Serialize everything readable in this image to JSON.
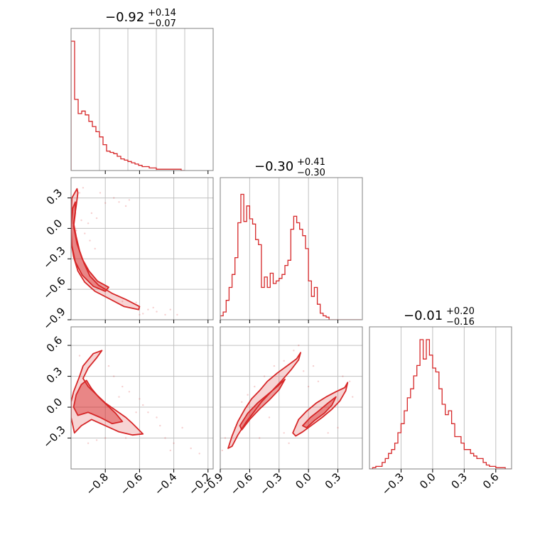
{
  "figure_type": "corner-plot",
  "accent_color": "#d62728",
  "chart_data": [
    {
      "type": "histogram",
      "panel": "diag-0",
      "title": {
        "median": "−0.92",
        "plus": "+0.14",
        "minus": "−0.07"
      },
      "xlim": [
        -1.0,
        0.0
      ],
      "bins": {
        "start": -1.0,
        "width": 0.025,
        "values": [
          1.0,
          0.55,
          0.44,
          0.46,
          0.43,
          0.38,
          0.34,
          0.3,
          0.26,
          0.2,
          0.15,
          0.14,
          0.13,
          0.11,
          0.09,
          0.08,
          0.07,
          0.06,
          0.05,
          0.04,
          0.03,
          0.03,
          0.02,
          0.02,
          0.01,
          0.01,
          0.01,
          0.01,
          0.01,
          0.01,
          0.01,
          0.0
        ]
      }
    },
    {
      "type": "histogram",
      "panel": "diag-1",
      "title": {
        "median": "−0.30",
        "plus": "+0.41",
        "minus": "−0.30"
      },
      "xlim": [
        -0.9,
        0.55
      ],
      "xticks": [
        "−0.9",
        "−0.6",
        "−0.3",
        "0.0",
        "0.3"
      ],
      "bins": {
        "start": -0.9,
        "width": 0.03,
        "values": [
          0.03,
          0.06,
          0.15,
          0.25,
          0.35,
          0.48,
          0.75,
          0.97,
          0.76,
          0.88,
          0.78,
          0.74,
          0.62,
          0.58,
          0.25,
          0.33,
          0.25,
          0.36,
          0.28,
          0.3,
          0.32,
          0.35,
          0.42,
          0.46,
          0.7,
          0.8,
          0.75,
          0.7,
          0.65,
          0.55,
          0.3,
          0.18,
          0.25,
          0.12,
          0.05,
          0.03,
          0.02,
          0.0,
          0.0,
          0.0,
          0.0,
          0.0,
          0.0,
          0.0,
          0.0,
          0.0,
          0.0,
          0.0
        ]
      }
    },
    {
      "type": "histogram",
      "panel": "diag-2",
      "title": {
        "median": "−0.01",
        "plus": "+0.20",
        "minus": "−0.16"
      },
      "xlim": [
        -0.6,
        0.75
      ],
      "xticks": [
        "−0.3",
        "0.0",
        "0.3",
        "0.6"
      ],
      "bins": {
        "start": -0.6,
        "width": 0.03,
        "values": [
          0.0,
          0.01,
          0.02,
          0.02,
          0.05,
          0.08,
          0.12,
          0.15,
          0.2,
          0.28,
          0.35,
          0.45,
          0.55,
          0.62,
          0.72,
          0.8,
          1.0,
          0.85,
          1.0,
          0.88,
          0.78,
          0.75,
          0.62,
          0.5,
          0.42,
          0.45,
          0.35,
          0.25,
          0.25,
          0.2,
          0.15,
          0.15,
          0.12,
          0.1,
          0.08,
          0.08,
          0.05,
          0.03,
          0.02,
          0.02,
          0.01,
          0.01,
          0.01,
          0.0,
          0.0
        ]
      }
    },
    {
      "type": "scatter-contour",
      "panel": "p10",
      "xlim": [
        -1.0,
        -0.17
      ],
      "ylim": [
        -0.9,
        0.5
      ],
      "xticks": [
        "−0.8",
        "−0.6",
        "−0.4",
        "−0.2"
      ],
      "yticks": [
        "0.3",
        "0.0",
        "−0.3",
        "−0.6",
        "−0.9"
      ],
      "contours": [
        {
          "level": "outer",
          "points": [
            [
              -0.995,
              0.3
            ],
            [
              -0.965,
              0.39
            ],
            [
              -0.96,
              0.35
            ],
            [
              -0.97,
              0.22
            ],
            [
              -0.985,
              0.05
            ],
            [
              -0.97,
              -0.08
            ],
            [
              -0.95,
              -0.22
            ],
            [
              -0.925,
              -0.34
            ],
            [
              -0.89,
              -0.47
            ],
            [
              -0.84,
              -0.56
            ],
            [
              -0.76,
              -0.64
            ],
            [
              -0.68,
              -0.7
            ],
            [
              -0.6,
              -0.77
            ],
            [
              -0.605,
              -0.8
            ],
            [
              -0.69,
              -0.77
            ],
            [
              -0.78,
              -0.69
            ],
            [
              -0.86,
              -0.62
            ],
            [
              -0.92,
              -0.53
            ],
            [
              -0.96,
              -0.42
            ],
            [
              -0.985,
              -0.28
            ],
            [
              -1.0,
              -0.13
            ],
            [
              -1.0,
              0.1
            ]
          ]
        },
        {
          "level": "inner",
          "points": [
            [
              -0.99,
              0.2
            ],
            [
              -0.975,
              0.26
            ],
            [
              -0.975,
              0.15
            ],
            [
              -0.985,
              0.02
            ],
            [
              -0.965,
              -0.15
            ],
            [
              -0.935,
              -0.3
            ],
            [
              -0.895,
              -0.42
            ],
            [
              -0.845,
              -0.52
            ],
            [
              -0.78,
              -0.58
            ],
            [
              -0.8,
              -0.62
            ],
            [
              -0.87,
              -0.57
            ],
            [
              -0.935,
              -0.46
            ],
            [
              -0.975,
              -0.33
            ],
            [
              -0.995,
              -0.17
            ],
            [
              -1.0,
              0.0
            ]
          ]
        }
      ],
      "scatter": [
        [
          -0.75,
          0.3
        ],
        [
          -0.72,
          0.26
        ],
        [
          -0.68,
          0.22
        ],
        [
          -0.83,
          0.35
        ],
        [
          -0.88,
          0.15
        ],
        [
          -0.9,
          0.05
        ],
        [
          -0.92,
          -0.05
        ],
        [
          -0.85,
          0.1
        ],
        [
          -0.8,
          0.25
        ],
        [
          -0.95,
          0.35
        ],
        [
          -0.93,
          0.4
        ],
        [
          -0.89,
          -0.12
        ],
        [
          -0.5,
          -0.82
        ],
        [
          -0.45,
          -0.85
        ],
        [
          -0.42,
          -0.8
        ],
        [
          -0.38,
          -0.85
        ],
        [
          -0.55,
          -0.8
        ],
        [
          -0.52,
          -0.78
        ],
        [
          -0.62,
          -0.73
        ],
        [
          -0.58,
          -0.84
        ],
        [
          -0.7,
          -0.72
        ],
        [
          -0.97,
          -0.02
        ],
        [
          -0.94,
          0.08
        ],
        [
          -0.86,
          -0.2
        ],
        [
          -0.6,
          -0.85
        ],
        [
          -0.66,
          0.28
        ]
      ]
    },
    {
      "type": "scatter-contour",
      "panel": "p20",
      "xlim": [
        -1.0,
        -0.17
      ],
      "ylim": [
        -0.6,
        0.78
      ],
      "xticks": [
        "−0.8",
        "−0.6",
        "−0.4",
        "−0.2"
      ],
      "yticks": [
        "0.6",
        "0.3",
        "0.0",
        "−0.3"
      ],
      "contours": [
        {
          "level": "outer",
          "points": [
            [
              -0.985,
              0.15
            ],
            [
              -0.95,
              0.3
            ],
            [
              -0.93,
              0.4
            ],
            [
              -0.87,
              0.52
            ],
            [
              -0.82,
              0.55
            ],
            [
              -0.85,
              0.48
            ],
            [
              -0.9,
              0.38
            ],
            [
              -0.93,
              0.28
            ],
            [
              -0.9,
              0.2
            ],
            [
              -0.85,
              0.12
            ],
            [
              -0.8,
              0.04
            ],
            [
              -0.74,
              -0.03
            ],
            [
              -0.68,
              -0.1
            ],
            [
              -0.64,
              -0.16
            ],
            [
              -0.58,
              -0.26
            ],
            [
              -0.64,
              -0.27
            ],
            [
              -0.72,
              -0.24
            ],
            [
              -0.8,
              -0.18
            ],
            [
              -0.88,
              -0.12
            ],
            [
              -0.94,
              -0.18
            ],
            [
              -0.98,
              -0.25
            ],
            [
              -1.0,
              -0.1
            ],
            [
              -1.0,
              0.05
            ]
          ]
        },
        {
          "level": "inner",
          "points": [
            [
              -0.97,
              0.12
            ],
            [
              -0.94,
              0.22
            ],
            [
              -0.91,
              0.26
            ],
            [
              -0.88,
              0.18
            ],
            [
              -0.84,
              0.1
            ],
            [
              -0.79,
              0.02
            ],
            [
              -0.74,
              -0.06
            ],
            [
              -0.7,
              -0.14
            ],
            [
              -0.76,
              -0.16
            ],
            [
              -0.83,
              -0.1
            ],
            [
              -0.9,
              -0.05
            ],
            [
              -0.96,
              -0.08
            ],
            [
              -0.985,
              0.0
            ]
          ]
        }
      ],
      "scatter": [
        [
          -0.7,
          0.2
        ],
        [
          -0.66,
          0.15
        ],
        [
          -0.6,
          0.08
        ],
        [
          -0.55,
          -0.05
        ],
        [
          -0.5,
          -0.1
        ],
        [
          -0.48,
          -0.18
        ],
        [
          -0.45,
          -0.3
        ],
        [
          -0.4,
          -0.35
        ],
        [
          -0.85,
          -0.32
        ],
        [
          -0.9,
          -0.35
        ],
        [
          -0.8,
          -0.3
        ],
        [
          -0.75,
          0.3
        ],
        [
          -0.78,
          0.4
        ],
        [
          -0.25,
          -0.45
        ],
        [
          -0.3,
          -0.4
        ],
        [
          -0.62,
          -0.05
        ],
        [
          -0.58,
          0.02
        ],
        [
          -0.68,
          -0.3
        ],
        [
          -0.95,
          0.5
        ],
        [
          -0.72,
          0.1
        ],
        [
          -0.35,
          -0.2
        ],
        [
          -0.42,
          -0.42
        ]
      ]
    },
    {
      "type": "scatter-contour",
      "panel": "p21",
      "xlim": [
        -0.9,
        0.55
      ],
      "ylim": [
        -0.6,
        0.78
      ],
      "xticks": [
        "−0.9",
        "−0.6",
        "−0.3",
        "0.0",
        "0.3"
      ],
      "contours": [
        {
          "level": "outer",
          "points": [
            [
              -0.82,
              -0.4
            ],
            [
              -0.78,
              -0.28
            ],
            [
              -0.72,
              -0.14
            ],
            [
              -0.65,
              -0.02
            ],
            [
              -0.58,
              0.08
            ],
            [
              -0.5,
              0.16
            ],
            [
              -0.42,
              0.25
            ],
            [
              -0.32,
              0.33
            ],
            [
              -0.22,
              0.4
            ],
            [
              -0.12,
              0.47
            ],
            [
              -0.08,
              0.53
            ],
            [
              -0.1,
              0.46
            ],
            [
              -0.18,
              0.36
            ],
            [
              -0.28,
              0.25
            ],
            [
              -0.38,
              0.15
            ],
            [
              -0.48,
              0.05
            ],
            [
              -0.56,
              -0.05
            ],
            [
              -0.64,
              -0.15
            ],
            [
              -0.72,
              -0.27
            ],
            [
              -0.78,
              -0.38
            ]
          ]
        },
        {
          "level": "inner",
          "points": [
            [
              -0.7,
              -0.18
            ],
            [
              -0.62,
              -0.06
            ],
            [
              -0.52,
              0.04
            ],
            [
              -0.42,
              0.12
            ],
            [
              -0.32,
              0.2
            ],
            [
              -0.24,
              0.27
            ],
            [
              -0.3,
              0.17
            ],
            [
              -0.4,
              0.07
            ],
            [
              -0.5,
              -0.02
            ],
            [
              -0.6,
              -0.12
            ],
            [
              -0.68,
              -0.22
            ]
          ]
        },
        {
          "level": "outer",
          "points": [
            [
              -0.16,
              -0.25
            ],
            [
              -0.1,
              -0.12
            ],
            [
              -0.02,
              -0.04
            ],
            [
              0.08,
              0.04
            ],
            [
              0.18,
              0.1
            ],
            [
              0.28,
              0.15
            ],
            [
              0.37,
              0.19
            ],
            [
              0.4,
              0.24
            ],
            [
              0.38,
              0.16
            ],
            [
              0.32,
              0.06
            ],
            [
              0.24,
              -0.02
            ],
            [
              0.14,
              -0.1
            ],
            [
              0.04,
              -0.17
            ],
            [
              -0.06,
              -0.24
            ],
            [
              -0.13,
              -0.28
            ]
          ]
        },
        {
          "level": "inner",
          "points": [
            [
              -0.06,
              -0.18
            ],
            [
              0.02,
              -0.1
            ],
            [
              0.1,
              -0.04
            ],
            [
              0.2,
              0.04
            ],
            [
              0.28,
              0.1
            ],
            [
              0.24,
              0.02
            ],
            [
              0.16,
              -0.06
            ],
            [
              0.06,
              -0.13
            ],
            [
              -0.02,
              -0.2
            ]
          ]
        }
      ],
      "scatter": [
        [
          -0.88,
          -0.42
        ],
        [
          -0.85,
          -0.3
        ],
        [
          -0.75,
          -0.2
        ],
        [
          -0.68,
          0.05
        ],
        [
          -0.62,
          0.12
        ],
        [
          -0.55,
          0.2
        ],
        [
          -0.45,
          0.3
        ],
        [
          -0.35,
          0.4
        ],
        [
          -0.25,
          0.45
        ],
        [
          -0.15,
          0.55
        ],
        [
          -0.1,
          0.6
        ],
        [
          -0.2,
          -0.35
        ],
        [
          -0.25,
          -0.25
        ],
        [
          0.0,
          0.2
        ],
        [
          0.1,
          0.25
        ],
        [
          0.2,
          -0.25
        ],
        [
          0.3,
          -0.2
        ],
        [
          0.42,
          0.25
        ],
        [
          0.45,
          0.1
        ],
        [
          -0.4,
          -0.1
        ],
        [
          -0.5,
          -0.3
        ],
        [
          0.05,
          0.4
        ],
        [
          -0.05,
          0.35
        ],
        [
          0.35,
          0.3
        ]
      ]
    }
  ]
}
